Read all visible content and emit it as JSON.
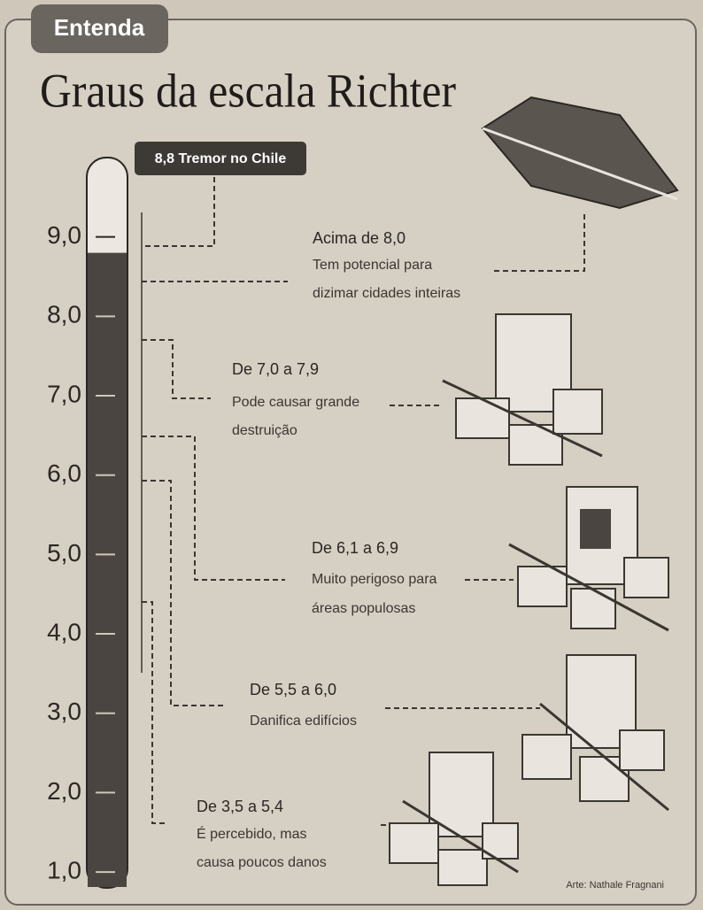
{
  "tag": "Entenda",
  "title": "Graus da escala Richter",
  "scale": {
    "range": [
      0.8,
      10
    ],
    "ticks": [
      {
        "value": 9,
        "label": "9,0"
      },
      {
        "value": 8,
        "label": "8,0"
      },
      {
        "value": 7,
        "label": "7,0"
      },
      {
        "value": 6,
        "label": "6,0"
      },
      {
        "value": 5,
        "label": "5,0"
      },
      {
        "value": 4,
        "label": "4,0"
      },
      {
        "value": 3,
        "label": "3,0"
      },
      {
        "value": 2,
        "label": "2,0"
      },
      {
        "value": 1,
        "label": "1,0"
      }
    ],
    "marker": {
      "value": 8.8,
      "label": "8,8 Tremor no Chile"
    }
  },
  "levels": [
    {
      "range": "Acima de 8,0",
      "description": [
        "Tem potencial para",
        "dizimar cidades inteiras"
      ]
    },
    {
      "range": "De 7,0 a 7,9",
      "description": [
        "Pode causar grande",
        "destruição"
      ]
    },
    {
      "range": "De 6,1 a 6,9",
      "description": [
        "Muito perigoso para",
        "áreas populosas"
      ]
    },
    {
      "range": "De 5,5 a 6,0",
      "description": [
        "Danifica edifícios"
      ]
    },
    {
      "range": "De 3,5 a 5,4",
      "description": [
        "É percebido, mas",
        "causa poucos danos"
      ]
    }
  ],
  "credit": "Arte: Nathale Fragnani"
}
